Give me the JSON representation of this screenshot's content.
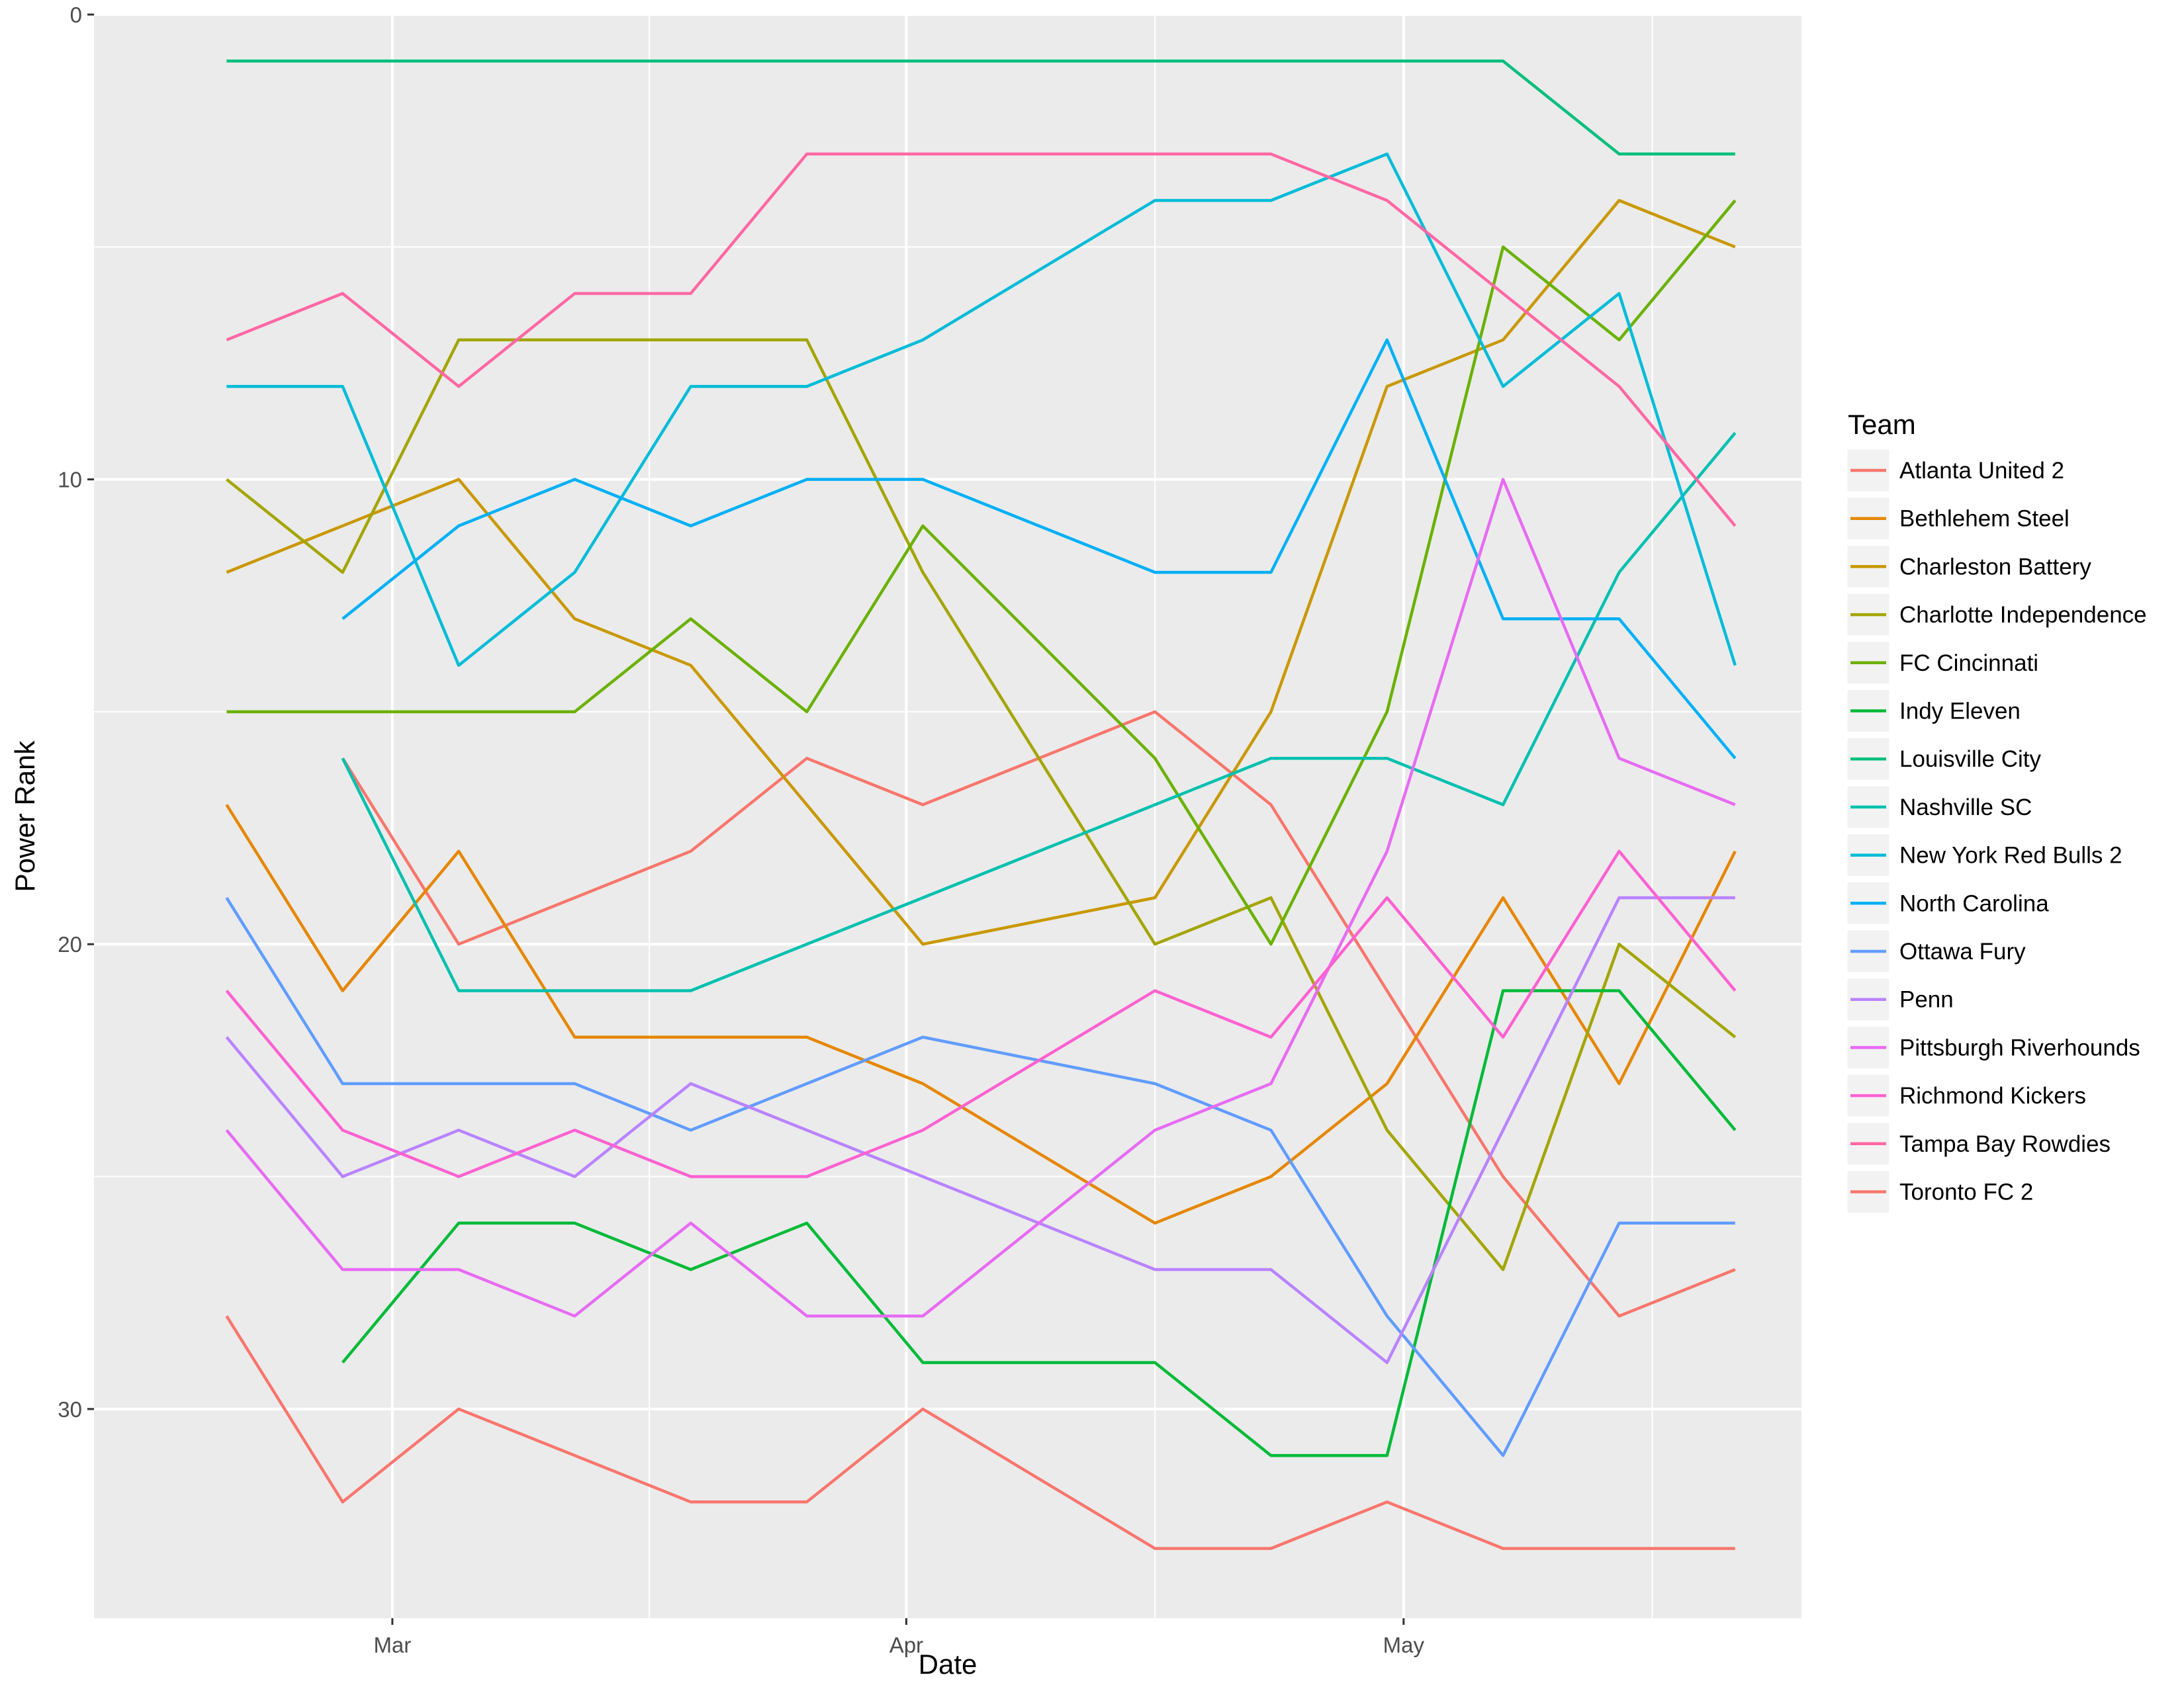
{
  "chart_data": {
    "type": "line",
    "xlabel": "Date",
    "ylabel": "Power Rank",
    "x_ticks": [
      {
        "date": "2018-03-01",
        "label": "Mar"
      },
      {
        "date": "2018-04-01",
        "label": "Apr"
      },
      {
        "date": "2018-05-01",
        "label": "May"
      }
    ],
    "x_range": [
      "2018-02-11",
      "2018-05-25"
    ],
    "y_ticks": [
      0,
      10,
      20,
      30
    ],
    "y_range": [
      0,
      34.5
    ],
    "y_reversed": true,
    "grid": true,
    "legend": {
      "title": "Team",
      "position": "right"
    },
    "series": [
      {
        "name": "Atlanta United 2",
        "color": "#F8766D",
        "points": [
          [
            "2018-02-26",
            16
          ],
          [
            "2018-03-05",
            20
          ],
          [
            "2018-03-19",
            18
          ],
          [
            "2018-03-26",
            16
          ],
          [
            "2018-04-02",
            17
          ],
          [
            "2018-04-16",
            15
          ],
          [
            "2018-04-23",
            17
          ],
          [
            "2018-04-30",
            21
          ],
          [
            "2018-05-07",
            25
          ],
          [
            "2018-05-14",
            28
          ],
          [
            "2018-05-21",
            27
          ]
        ]
      },
      {
        "name": "Bethlehem Steel",
        "color": "#E58700",
        "points": [
          [
            "2018-02-19",
            17
          ],
          [
            "2018-02-26",
            21
          ],
          [
            "2018-03-05",
            18
          ],
          [
            "2018-03-12",
            22
          ],
          [
            "2018-03-19",
            22
          ],
          [
            "2018-03-26",
            22
          ],
          [
            "2018-04-02",
            23
          ],
          [
            "2018-04-16",
            26
          ],
          [
            "2018-04-23",
            25
          ],
          [
            "2018-04-30",
            23
          ],
          [
            "2018-05-07",
            19
          ],
          [
            "2018-05-14",
            23
          ],
          [
            "2018-05-21",
            18
          ]
        ]
      },
      {
        "name": "Charleston Battery",
        "color": "#C99800",
        "points": [
          [
            "2018-02-19",
            12
          ],
          [
            "2018-03-05",
            10
          ],
          [
            "2018-03-12",
            13
          ],
          [
            "2018-03-19",
            14
          ],
          [
            "2018-04-02",
            20
          ],
          [
            "2018-04-16",
            19
          ],
          [
            "2018-04-23",
            15
          ],
          [
            "2018-04-30",
            8
          ],
          [
            "2018-05-07",
            7
          ],
          [
            "2018-05-14",
            4
          ],
          [
            "2018-05-21",
            5
          ]
        ]
      },
      {
        "name": "Charlotte Independence",
        "color": "#A3A500",
        "points": [
          [
            "2018-02-19",
            10
          ],
          [
            "2018-02-26",
            12
          ],
          [
            "2018-03-05",
            7
          ],
          [
            "2018-03-12",
            7
          ],
          [
            "2018-03-26",
            7
          ],
          [
            "2018-04-02",
            12
          ],
          [
            "2018-04-16",
            20
          ],
          [
            "2018-04-23",
            19
          ],
          [
            "2018-04-30",
            24
          ],
          [
            "2018-05-07",
            27
          ],
          [
            "2018-05-14",
            20
          ],
          [
            "2018-05-21",
            22
          ]
        ]
      },
      {
        "name": "FC Cincinnati",
        "color": "#6BB100",
        "points": [
          [
            "2018-02-19",
            15
          ],
          [
            "2018-03-12",
            15
          ],
          [
            "2018-03-19",
            13
          ],
          [
            "2018-03-26",
            15
          ],
          [
            "2018-04-02",
            11
          ],
          [
            "2018-04-16",
            16
          ],
          [
            "2018-04-23",
            20
          ],
          [
            "2018-04-30",
            15
          ],
          [
            "2018-05-07",
            5
          ],
          [
            "2018-05-14",
            7
          ],
          [
            "2018-05-21",
            4
          ]
        ]
      },
      {
        "name": "Indy Eleven",
        "color": "#00BA38",
        "points": [
          [
            "2018-02-26",
            29
          ],
          [
            "2018-03-05",
            26
          ],
          [
            "2018-03-12",
            26
          ],
          [
            "2018-03-19",
            27
          ],
          [
            "2018-03-26",
            26
          ],
          [
            "2018-04-02",
            29
          ],
          [
            "2018-04-16",
            29
          ],
          [
            "2018-04-23",
            31
          ],
          [
            "2018-04-30",
            31
          ],
          [
            "2018-05-07",
            21
          ],
          [
            "2018-05-14",
            21
          ],
          [
            "2018-05-21",
            24
          ]
        ]
      },
      {
        "name": "Louisville City",
        "color": "#00BF7D",
        "points": [
          [
            "2018-02-19",
            1
          ],
          [
            "2018-05-07",
            1
          ],
          [
            "2018-05-14",
            3
          ],
          [
            "2018-05-21",
            3
          ]
        ]
      },
      {
        "name": "Nashville SC",
        "color": "#00C0AF",
        "points": [
          [
            "2018-02-26",
            16
          ],
          [
            "2018-03-05",
            21
          ],
          [
            "2018-03-19",
            21
          ],
          [
            "2018-04-23",
            16
          ],
          [
            "2018-04-30",
            16
          ],
          [
            "2018-05-07",
            17
          ],
          [
            "2018-05-14",
            12
          ],
          [
            "2018-05-21",
            9
          ]
        ]
      },
      {
        "name": "New York Red Bulls 2",
        "color": "#00BCD8",
        "points": [
          [
            "2018-02-19",
            8
          ],
          [
            "2018-02-26",
            8
          ],
          [
            "2018-03-05",
            14
          ],
          [
            "2018-03-12",
            12
          ],
          [
            "2018-03-19",
            8
          ],
          [
            "2018-03-26",
            8
          ],
          [
            "2018-04-02",
            7
          ],
          [
            "2018-04-16",
            4
          ],
          [
            "2018-04-23",
            4
          ],
          [
            "2018-04-30",
            3
          ],
          [
            "2018-05-07",
            8
          ],
          [
            "2018-05-14",
            6
          ],
          [
            "2018-05-21",
            14
          ]
        ]
      },
      {
        "name": "North Carolina",
        "color": "#00B0F6",
        "points": [
          [
            "2018-02-26",
            13
          ],
          [
            "2018-03-05",
            11
          ],
          [
            "2018-03-12",
            10
          ],
          [
            "2018-03-19",
            11
          ],
          [
            "2018-03-26",
            10
          ],
          [
            "2018-04-02",
            10
          ],
          [
            "2018-04-16",
            12
          ],
          [
            "2018-04-23",
            12
          ],
          [
            "2018-04-30",
            7
          ],
          [
            "2018-05-07",
            13
          ],
          [
            "2018-05-14",
            13
          ],
          [
            "2018-05-21",
            16
          ]
        ]
      },
      {
        "name": "Ottawa Fury",
        "color": "#619CFF",
        "points": [
          [
            "2018-02-19",
            19
          ],
          [
            "2018-02-26",
            23
          ],
          [
            "2018-03-12",
            23
          ],
          [
            "2018-03-19",
            24
          ],
          [
            "2018-04-02",
            22
          ],
          [
            "2018-04-16",
            23
          ],
          [
            "2018-04-23",
            24
          ],
          [
            "2018-04-30",
            28
          ],
          [
            "2018-05-07",
            31
          ],
          [
            "2018-05-14",
            26
          ],
          [
            "2018-05-21",
            26
          ]
        ]
      },
      {
        "name": "Penn",
        "color": "#B983FF",
        "points": [
          [
            "2018-02-19",
            22
          ],
          [
            "2018-02-26",
            25
          ],
          [
            "2018-03-05",
            24
          ],
          [
            "2018-03-12",
            25
          ],
          [
            "2018-03-19",
            23
          ],
          [
            "2018-04-16",
            27
          ],
          [
            "2018-04-23",
            27
          ],
          [
            "2018-04-30",
            29
          ],
          [
            "2018-05-07",
            24
          ],
          [
            "2018-05-14",
            19
          ],
          [
            "2018-05-21",
            19
          ]
        ]
      },
      {
        "name": "Pittsburgh Riverhounds",
        "color": "#E76BF3",
        "points": [
          [
            "2018-02-19",
            24
          ],
          [
            "2018-02-26",
            27
          ],
          [
            "2018-03-05",
            27
          ],
          [
            "2018-03-12",
            28
          ],
          [
            "2018-03-19",
            26
          ],
          [
            "2018-03-26",
            28
          ],
          [
            "2018-04-02",
            28
          ],
          [
            "2018-04-16",
            24
          ],
          [
            "2018-04-23",
            23
          ],
          [
            "2018-04-30",
            18
          ],
          [
            "2018-05-07",
            10
          ],
          [
            "2018-05-14",
            16
          ],
          [
            "2018-05-21",
            17
          ]
        ]
      },
      {
        "name": "Richmond Kickers",
        "color": "#FD61D1",
        "points": [
          [
            "2018-02-19",
            21
          ],
          [
            "2018-02-26",
            24
          ],
          [
            "2018-03-05",
            25
          ],
          [
            "2018-03-12",
            24
          ],
          [
            "2018-03-19",
            25
          ],
          [
            "2018-03-26",
            25
          ],
          [
            "2018-04-02",
            24
          ],
          [
            "2018-04-16",
            21
          ],
          [
            "2018-04-23",
            22
          ],
          [
            "2018-04-30",
            19
          ],
          [
            "2018-05-07",
            22
          ],
          [
            "2018-05-14",
            18
          ],
          [
            "2018-05-21",
            21
          ]
        ]
      },
      {
        "name": "Tampa Bay Rowdies",
        "color": "#FF67A4",
        "points": [
          [
            "2018-02-19",
            7
          ],
          [
            "2018-02-26",
            6
          ],
          [
            "2018-03-05",
            8
          ],
          [
            "2018-03-12",
            6
          ],
          [
            "2018-03-19",
            6
          ],
          [
            "2018-03-26",
            3
          ],
          [
            "2018-04-23",
            3
          ],
          [
            "2018-04-30",
            4
          ],
          [
            "2018-05-07",
            6
          ],
          [
            "2018-05-14",
            8
          ],
          [
            "2018-05-21",
            11
          ]
        ]
      },
      {
        "name": "Toronto FC 2",
        "color": "#F8766D",
        "points": [
          [
            "2018-02-19",
            28
          ],
          [
            "2018-02-26",
            32
          ],
          [
            "2018-03-05",
            30
          ],
          [
            "2018-03-19",
            32
          ],
          [
            "2018-03-26",
            32
          ],
          [
            "2018-04-02",
            30
          ],
          [
            "2018-04-16",
            33
          ],
          [
            "2018-04-23",
            33
          ],
          [
            "2018-04-30",
            32
          ],
          [
            "2018-05-07",
            33
          ],
          [
            "2018-05-21",
            33
          ]
        ]
      }
    ]
  }
}
